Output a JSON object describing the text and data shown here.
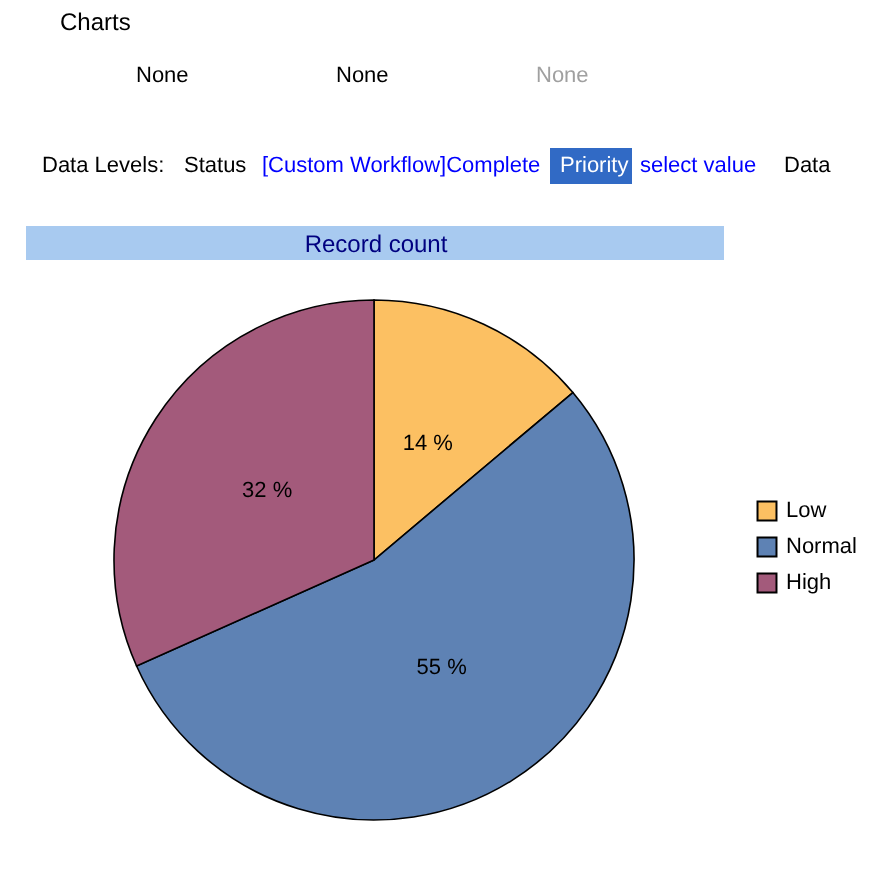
{
  "chart_data": {
    "type": "pie",
    "title": "Record count",
    "categories": [
      "Low",
      "Normal",
      "High"
    ],
    "values": [
      14,
      55,
      32
    ],
    "colors": [
      "#fcc062",
      "#5e82b4",
      "#a35a7b"
    ],
    "value_labels": [
      "14 %",
      "55 %",
      "32 %"
    ],
    "legend": "right",
    "annotations": [
      "Charts",
      "None",
      "None",
      "None",
      "Data Levels:",
      "Status",
      "[Custom Workflow]Complete",
      "Priority",
      "select value",
      "Data"
    ]
  }
}
